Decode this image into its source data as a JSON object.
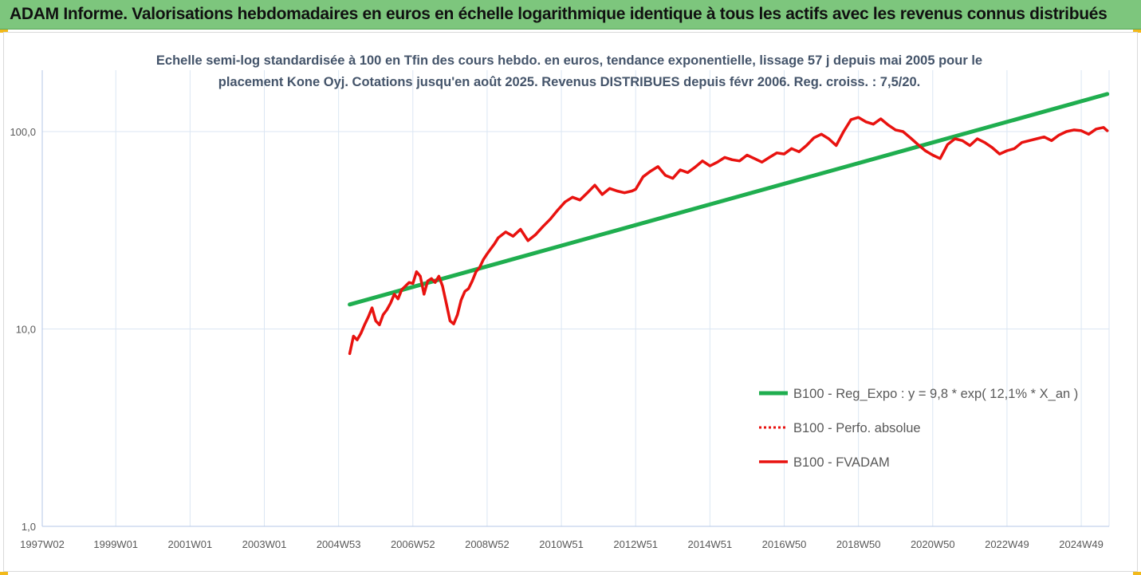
{
  "banner": {
    "title": "ADAM Informe. Valorisations hebdomadaires en euros en échelle logarithmique identique à tous les actifs avec les revenus connus distribués"
  },
  "colors": {
    "banner_bg": "#7dc67d",
    "regression": "#1fae4f",
    "fvadam": "#e8120f",
    "perfo": "#e8120f",
    "grid": "#dbe6f3",
    "axis_text": "#595959",
    "title_text": "#44546a"
  },
  "chart_data": {
    "type": "line",
    "title_lines": [
      "Echelle semi-log standardisée à 100 en Tfin des cours hebdo. en euros, tendance exponentielle, lissage 57 j depuis mai 2005 pour le",
      "placement Kone Oyj. Cotations jusqu'en août 2025. Revenus DISTRIBUES depuis févr 2006. Reg. croiss. : 7,5/20."
    ],
    "y_scale": "log",
    "ylim": [
      1,
      200
    ],
    "y_ticks": [
      {
        "value": 1,
        "label": "1,0"
      },
      {
        "value": 10,
        "label": "10,0"
      },
      {
        "value": 100,
        "label": "100,0"
      }
    ],
    "xlim": [
      1997.02,
      2025.75
    ],
    "x_ticks": [
      {
        "value": 1997.02,
        "label": "1997W02"
      },
      {
        "value": 1999.0,
        "label": "1999W01"
      },
      {
        "value": 2001.0,
        "label": "2001W01"
      },
      {
        "value": 2003.0,
        "label": "2003W01"
      },
      {
        "value": 2005.0,
        "label": "2004W53"
      },
      {
        "value": 2007.0,
        "label": "2006W52"
      },
      {
        "value": 2009.0,
        "label": "2008W52"
      },
      {
        "value": 2011.0,
        "label": "2010W51"
      },
      {
        "value": 2013.0,
        "label": "2012W51"
      },
      {
        "value": 2015.0,
        "label": "2014W51"
      },
      {
        "value": 2017.0,
        "label": "2016W50"
      },
      {
        "value": 2019.0,
        "label": "2018W50"
      },
      {
        "value": 2021.0,
        "label": "2020W50"
      },
      {
        "value": 2023.0,
        "label": "2022W49"
      },
      {
        "value": 2025.0,
        "label": "2024W49"
      }
    ],
    "grid": true,
    "legend_position": "right",
    "series": [
      {
        "name": "B100 - Reg_Expo : y = 9,8 * exp( 12,1% *  X_an )",
        "style": "solid-thick",
        "color": "#1fae4f",
        "x": [
          2005.3,
          2025.7
        ],
        "y": [
          13.3,
          155
        ]
      },
      {
        "name": "B100 - Perfo. absolue",
        "style": "dotted",
        "color": "#e8120f",
        "x": [],
        "y": []
      },
      {
        "name": "B100 - FVADAM",
        "style": "solid",
        "color": "#e8120f",
        "x": [
          2005.3,
          2005.4,
          2005.5,
          2005.6,
          2005.7,
          2005.8,
          2005.9,
          2006.0,
          2006.1,
          2006.2,
          2006.3,
          2006.4,
          2006.5,
          2006.6,
          2006.7,
          2006.8,
          2006.9,
          2007.0,
          2007.1,
          2007.2,
          2007.3,
          2007.4,
          2007.5,
          2007.6,
          2007.7,
          2007.8,
          2007.9,
          2008.0,
          2008.1,
          2008.2,
          2008.3,
          2008.4,
          2008.5,
          2008.6,
          2008.7,
          2008.8,
          2008.9,
          2009.0,
          2009.1,
          2009.2,
          2009.3,
          2009.5,
          2009.7,
          2009.9,
          2010.1,
          2010.3,
          2010.5,
          2010.7,
          2010.9,
          2011.1,
          2011.3,
          2011.5,
          2011.7,
          2011.9,
          2012.1,
          2012.3,
          2012.5,
          2012.7,
          2012.9,
          2013.0,
          2013.2,
          2013.4,
          2013.6,
          2013.8,
          2014.0,
          2014.2,
          2014.4,
          2014.6,
          2014.8,
          2015.0,
          2015.2,
          2015.4,
          2015.6,
          2015.8,
          2016.0,
          2016.2,
          2016.4,
          2016.6,
          2016.8,
          2017.0,
          2017.2,
          2017.4,
          2017.6,
          2017.8,
          2018.0,
          2018.2,
          2018.4,
          2018.6,
          2018.8,
          2019.0,
          2019.2,
          2019.4,
          2019.6,
          2019.8,
          2020.0,
          2020.2,
          2020.4,
          2020.6,
          2020.8,
          2021.0,
          2021.2,
          2021.4,
          2021.6,
          2021.8,
          2022.0,
          2022.2,
          2022.4,
          2022.6,
          2022.8,
          2023.0,
          2023.2,
          2023.4,
          2023.6,
          2023.8,
          2024.0,
          2024.2,
          2024.4,
          2024.6,
          2024.8,
          2025.0,
          2025.2,
          2025.4,
          2025.6,
          2025.7
        ],
        "y": [
          7.5,
          9.2,
          8.8,
          9.5,
          10.5,
          11.5,
          12.8,
          11.0,
          10.5,
          11.8,
          12.5,
          13.5,
          15.0,
          14.2,
          15.8,
          16.5,
          17.2,
          17.0,
          19.5,
          18.5,
          15.0,
          17.5,
          18.0,
          17.2,
          18.5,
          16.5,
          13.5,
          11.0,
          10.6,
          11.8,
          14.0,
          15.5,
          16.0,
          17.5,
          19.5,
          20.5,
          22.5,
          24.0,
          25.5,
          27.0,
          29.0,
          31.0,
          29.5,
          32.0,
          28.0,
          30.0,
          33.0,
          36.0,
          40.0,
          44.0,
          46.5,
          45.0,
          49.0,
          53.5,
          48.0,
          51.5,
          50.0,
          49.0,
          50.0,
          51.0,
          59.0,
          63.0,
          66.5,
          60.0,
          58.0,
          64.0,
          62.0,
          66.0,
          71.0,
          67.0,
          70.0,
          74.0,
          72.0,
          71.0,
          76.0,
          73.0,
          70.0,
          74.0,
          78.0,
          77.0,
          82.0,
          79.0,
          85.0,
          93.0,
          97.0,
          92.0,
          85.0,
          100.0,
          115.0,
          118.0,
          112.0,
          109.0,
          116.0,
          108.0,
          102.0,
          100.0,
          93.0,
          86.0,
          80.0,
          76.0,
          73.0,
          86.0,
          92.0,
          90.0,
          85.0,
          92.0,
          88.0,
          83.0,
          77.0,
          80.0,
          82.0,
          88.0,
          90.0,
          92.0,
          94.0,
          90.0,
          96.0,
          100.0,
          102.0,
          101.0,
          97.0,
          103.0,
          105.0,
          101.0
        ]
      }
    ],
    "legend": [
      {
        "label": "B100 - Reg_Expo : y = 9,8 * exp( 12,1% *  X_an )",
        "style": "solid-thick",
        "color": "#1fae4f"
      },
      {
        "label": "B100 - Perfo. absolue",
        "style": "dotted",
        "color": "#e8120f"
      },
      {
        "label": "B100 - FVADAM",
        "style": "solid",
        "color": "#e8120f"
      }
    ]
  }
}
